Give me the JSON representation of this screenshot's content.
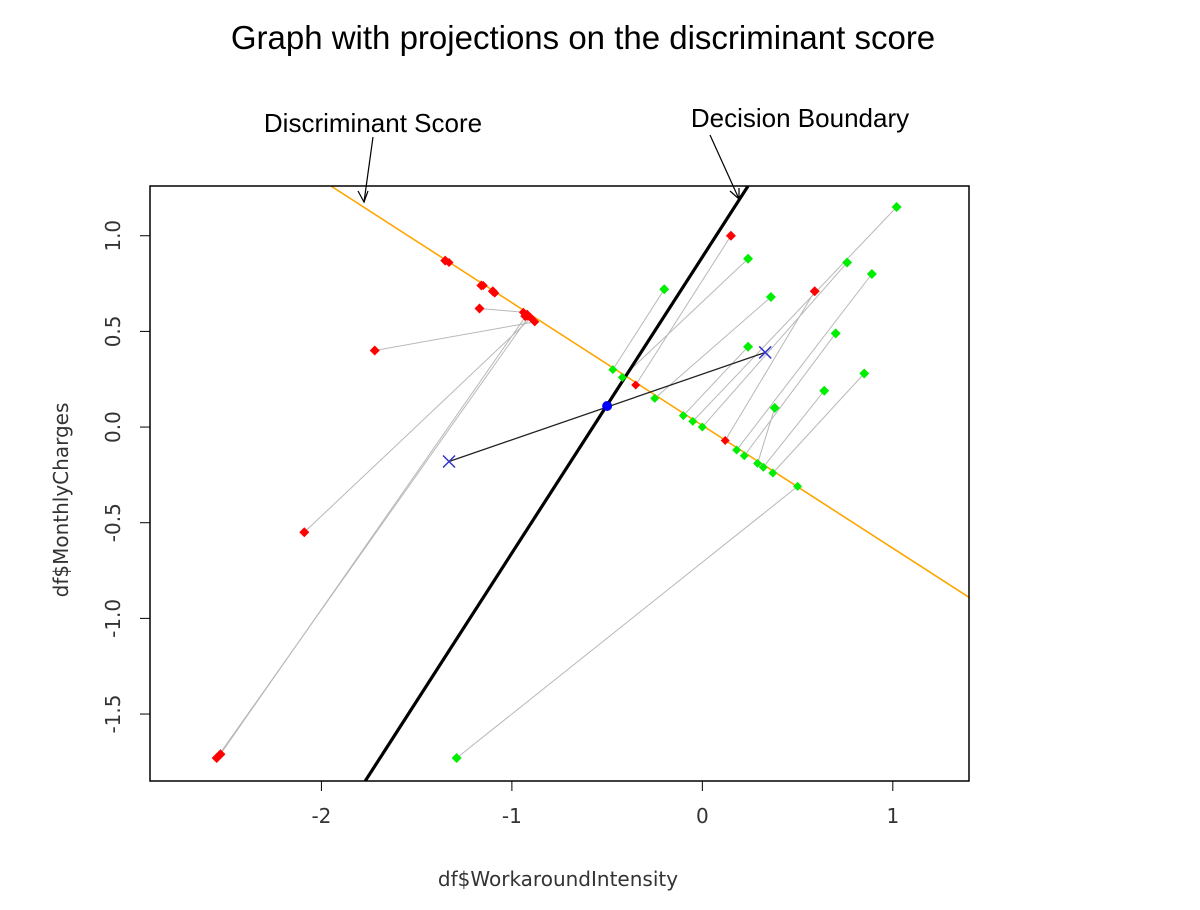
{
  "chart_data": {
    "type": "scatter",
    "title": "Graph with projections on the discriminant score",
    "xlabel": "df$WorkaroundIntensity",
    "ylabel": "df$MonthlyCharges",
    "xlim": [
      -2.9,
      1.4
    ],
    "ylim": [
      -1.85,
      1.26
    ],
    "xticks": [
      -2,
      -1,
      0,
      1
    ],
    "yticks": [
      -1.5,
      -1.0,
      -0.5,
      0.0,
      0.5,
      1.0
    ],
    "xtick_labels": [
      "-2",
      "-1",
      "0",
      "1"
    ],
    "ytick_labels": [
      "-1.5",
      "-1.0",
      "-0.5",
      "0.0",
      "0.5",
      "1.0"
    ],
    "grid": false,
    "annotations": [
      {
        "id": "score",
        "text": "Discriminant Score"
      },
      {
        "id": "boundary",
        "text": "Decision Boundary"
      }
    ],
    "discriminant_line": {
      "color": "#FFA500",
      "from": [
        -1.95,
        1.26
      ],
      "to": [
        1.4,
        -0.89
      ]
    },
    "decision_boundary": {
      "color": "#000000",
      "from": [
        -1.77,
        -1.85
      ],
      "to": [
        0.24,
        1.26
      ]
    },
    "group_means": {
      "color": "#3333CC",
      "points": [
        [
          -1.33,
          -0.18
        ],
        [
          0.33,
          0.39
        ]
      ]
    },
    "means_connector": {
      "from": [
        -1.33,
        -0.18
      ],
      "to": [
        0.33,
        0.39
      ]
    },
    "projected_mean": {
      "color": "#0000FF",
      "point": [
        -0.5,
        0.11
      ]
    },
    "series": [
      {
        "color": "#FF0000",
        "points": [
          [
            -1.35,
            0.87
          ],
          [
            -1.16,
            0.74
          ],
          [
            -1.1,
            0.71
          ],
          [
            -1.17,
            0.62
          ],
          [
            -0.93,
            0.58
          ],
          [
            -1.72,
            0.4
          ],
          [
            -2.09,
            -0.55
          ],
          [
            -2.55,
            -1.73
          ],
          [
            -2.53,
            -1.71
          ],
          [
            0.15,
            1.0
          ],
          [
            0.59,
            0.71
          ]
        ],
        "projections": [
          [
            -1.33,
            0.86
          ],
          [
            -1.15,
            0.74
          ],
          [
            -1.09,
            0.7
          ],
          [
            -0.94,
            0.6
          ],
          [
            -0.92,
            0.58
          ],
          [
            -0.88,
            0.55
          ],
          [
            -0.9,
            0.57
          ],
          [
            -0.91,
            0.58
          ],
          [
            -0.92,
            0.59
          ],
          [
            -0.35,
            0.22
          ],
          [
            0.12,
            -0.07
          ]
        ]
      },
      {
        "color": "#00EE00",
        "points": [
          [
            -0.2,
            0.72
          ],
          [
            0.24,
            0.88
          ],
          [
            0.36,
            0.68
          ],
          [
            0.24,
            0.42
          ],
          [
            1.02,
            1.15
          ],
          [
            0.76,
            0.86
          ],
          [
            0.89,
            0.8
          ],
          [
            0.7,
            0.49
          ],
          [
            0.38,
            0.1
          ],
          [
            0.64,
            0.19
          ],
          [
            0.85,
            0.28
          ],
          [
            -1.29,
            -1.73
          ]
        ],
        "projections": [
          [
            -0.47,
            0.3
          ],
          [
            -0.42,
            0.26
          ],
          [
            -0.25,
            0.15
          ],
          [
            -0.1,
            0.06
          ],
          [
            -0.05,
            0.03
          ],
          [
            0.0,
            0.0
          ],
          [
            0.18,
            -0.12
          ],
          [
            0.22,
            -0.15
          ],
          [
            0.29,
            -0.19
          ],
          [
            0.32,
            -0.21
          ],
          [
            0.37,
            -0.24
          ],
          [
            0.5,
            -0.31
          ]
        ]
      }
    ]
  }
}
